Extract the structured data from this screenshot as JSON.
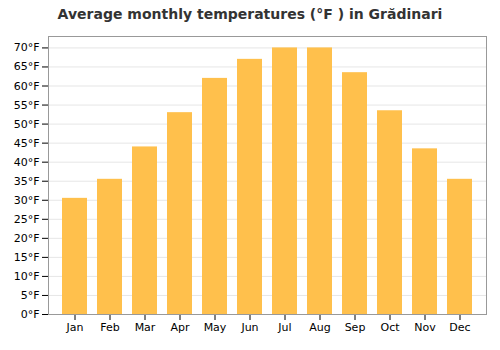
{
  "chart_data": {
    "type": "bar",
    "title": "Average monthly temperatures (°F ) in Grădinari",
    "categories": [
      "Jan",
      "Feb",
      "Mar",
      "Apr",
      "May",
      "Jun",
      "Jul",
      "Aug",
      "Sep",
      "Oct",
      "Nov",
      "Dec"
    ],
    "values": [
      30.5,
      35.5,
      44,
      53,
      62,
      67,
      70,
      70,
      63.5,
      53.5,
      43.5,
      35.5
    ],
    "color": "#FFC04C",
    "ylim": [
      0,
      73
    ],
    "yticks": [
      {
        "value": 0,
        "label": "0°F"
      },
      {
        "value": 5,
        "label": "5°F"
      },
      {
        "value": 10,
        "label": "10°F"
      },
      {
        "value": 15,
        "label": "15°F"
      },
      {
        "value": 20,
        "label": "20°F"
      },
      {
        "value": 25,
        "label": "25°F"
      },
      {
        "value": 30,
        "label": "30°F"
      },
      {
        "value": 35,
        "label": "35°F"
      },
      {
        "value": 40,
        "label": "40°F"
      },
      {
        "value": 45,
        "label": "45°F"
      },
      {
        "value": 50,
        "label": "50°F"
      },
      {
        "value": 55,
        "label": "55°F"
      },
      {
        "value": 60,
        "label": "60°F"
      },
      {
        "value": 65,
        "label": "65°F"
      },
      {
        "value": 70,
        "label": "70°F"
      }
    ],
    "grid": true
  }
}
